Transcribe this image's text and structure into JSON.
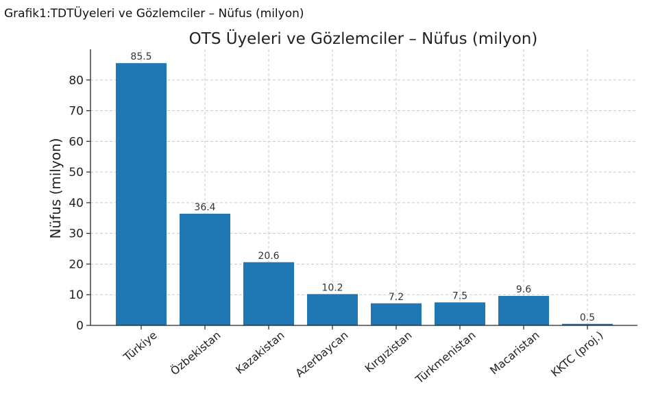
{
  "caption": "Grafik1:TDTÜyeleri ve Gözlemciler – Nüfus (milyon)",
  "chart_data": {
    "type": "bar",
    "title": "OTS Üyeleri ve Gözlemciler – Nüfus (milyon)",
    "xlabel": "",
    "ylabel": "Nüfus (milyon)",
    "categories": [
      "Türkiye",
      "Özbekistan",
      "Kazakistan",
      "Azerbaycan",
      "Kırgızistan",
      "Türkmenistan",
      "Macaristan",
      "KKTC (proj.)"
    ],
    "values": [
      85.5,
      36.4,
      20.6,
      10.2,
      7.2,
      7.5,
      9.6,
      0.5
    ],
    "value_labels": [
      "85.5",
      "36.4",
      "20.6",
      "10.2",
      "7.2",
      "7.5",
      "9.6",
      "0.5"
    ],
    "ylim": [
      0,
      90
    ],
    "yticks": [
      0,
      10,
      20,
      30,
      40,
      50,
      60,
      70,
      80
    ],
    "grid": true,
    "bar_color": "#1f77b4"
  }
}
